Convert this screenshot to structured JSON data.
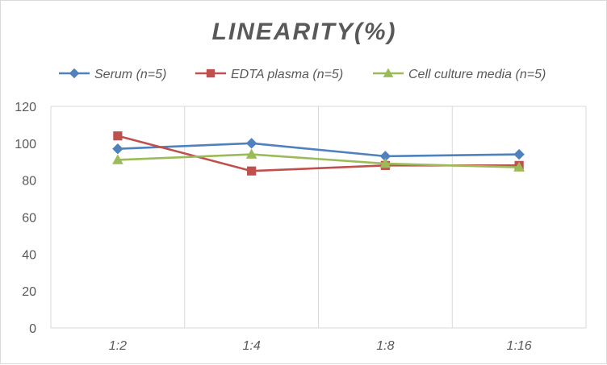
{
  "chart_data": {
    "type": "line",
    "title": "LINEARITY(%)",
    "xlabel": "",
    "ylabel": "",
    "categories": [
      "1:2",
      "1:4",
      "1:8",
      "1:16"
    ],
    "ylim": [
      0,
      120
    ],
    "yticks": [
      0,
      20,
      40,
      60,
      80,
      100,
      120
    ],
    "grid": "vertical",
    "legend_position": "top",
    "series": [
      {
        "name": "Serum (n=5)",
        "color": "#4f81bd",
        "marker": "diamond",
        "values": [
          97,
          100,
          93,
          94
        ]
      },
      {
        "name": "EDTA plasma (n=5)",
        "color": "#c0504d",
        "marker": "square",
        "values": [
          104,
          85,
          88,
          88
        ]
      },
      {
        "name": "Cell culture media (n=5)",
        "color": "#9bbb59",
        "marker": "triangle",
        "values": [
          91,
          94,
          89,
          87
        ]
      }
    ]
  }
}
